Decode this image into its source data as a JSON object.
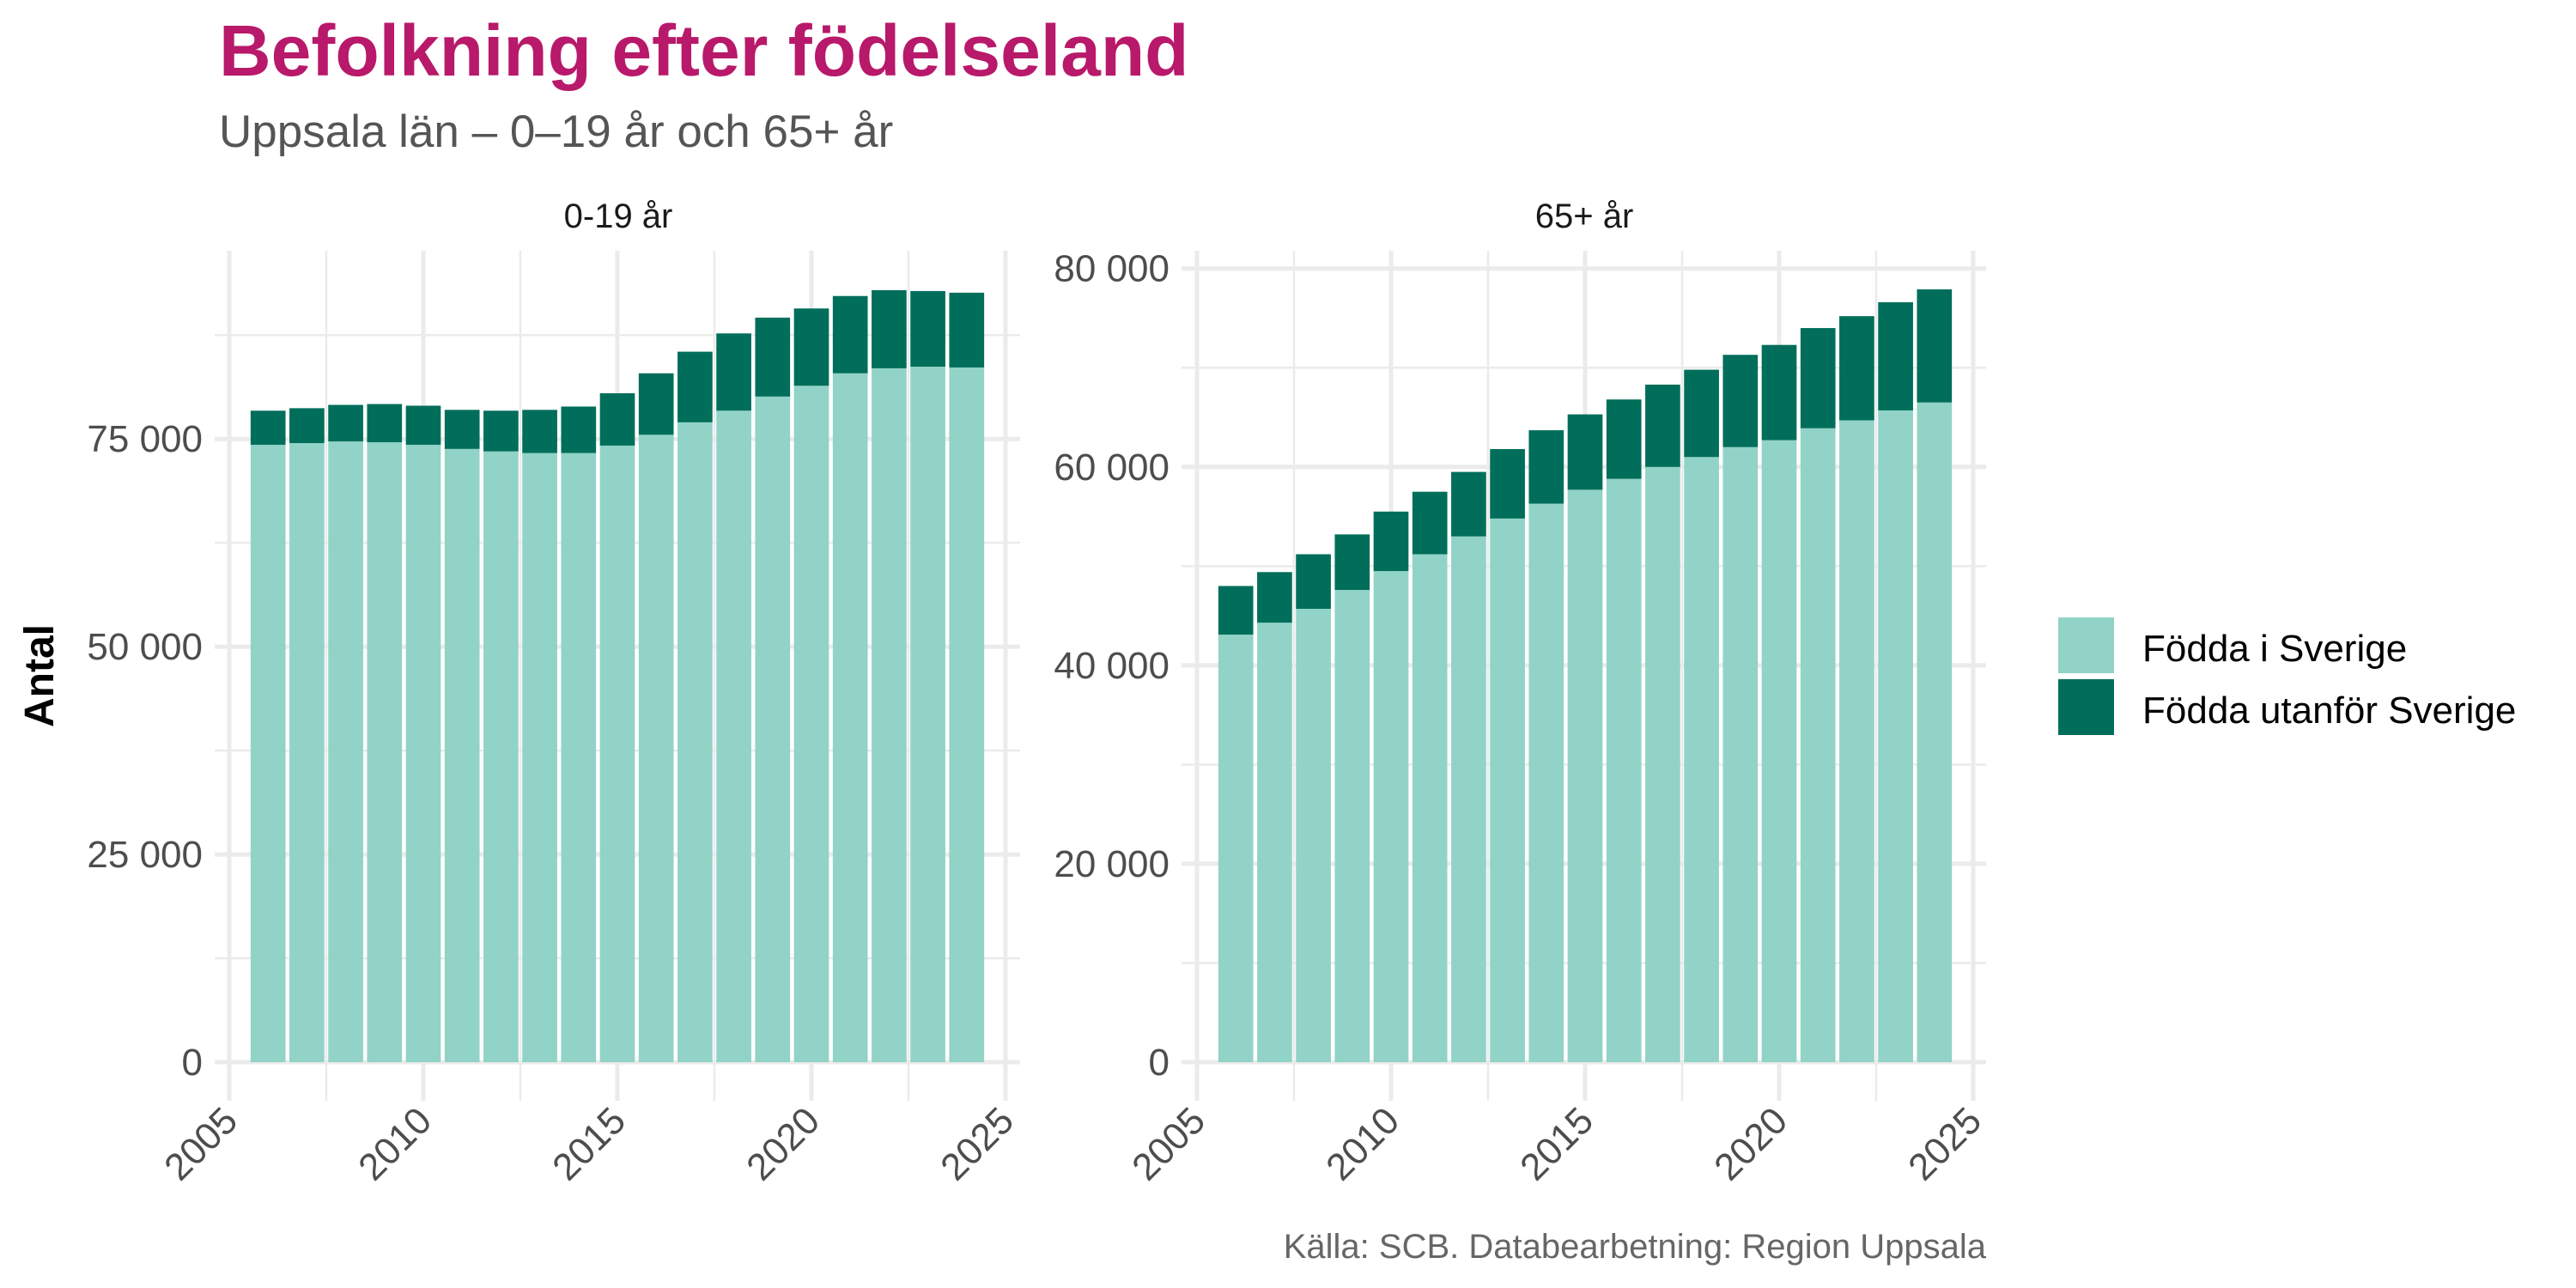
{
  "chart_data": {
    "type": "bar",
    "stacked": true,
    "title": "Befolkning efter födelseland",
    "subtitle": "Uppsala län – 0–19 år och 65+ år",
    "ylabel": "Antal",
    "xlabel": "",
    "caption": "Källa: SCB. Databearbetning: Region Uppsala",
    "legend": {
      "position": "right",
      "entries": [
        {
          "name": "Födda i Sverige",
          "color": "#91d3c7"
        },
        {
          "name": "Födda utanför Sverige",
          "color": "#006e5a"
        }
      ]
    },
    "colors": {
      "title": "#b8196a",
      "fodda_i_sverige": "#91d3c7",
      "fodda_utanfor_sverige": "#006e5a",
      "grid": "#ebebeb"
    },
    "grid": true,
    "x": [
      2006,
      2007,
      2008,
      2009,
      2010,
      2011,
      2012,
      2013,
      2014,
      2015,
      2016,
      2017,
      2018,
      2019,
      2020,
      2021,
      2022,
      2023,
      2024
    ],
    "facets": [
      {
        "label": "0-19 år",
        "xlim": [
          2005,
          2025
        ],
        "xticks": [
          2005,
          2010,
          2015,
          2020,
          2025
        ],
        "xticklabels": [
          "2005",
          "2010",
          "2015",
          "2020",
          "2025"
        ],
        "ylim": [
          -4650,
          97650
        ],
        "yticks": [
          0,
          25000,
          50000,
          75000
        ],
        "yticklabels": [
          "0",
          "25 000",
          "50 000",
          "75 000"
        ],
        "series": [
          {
            "name": "Födda i Sverige",
            "values": [
              74300,
              74500,
              74700,
              74600,
              74300,
              73800,
              73500,
              73300,
              73300,
              74200,
              75500,
              77000,
              78400,
              80100,
              81400,
              82900,
              83500,
              83700,
              83600
            ]
          },
          {
            "name": "Födda utanför Sverige",
            "values": [
              4100,
              4200,
              4400,
              4600,
              4700,
              4700,
              4900,
              5200,
              5600,
              6300,
              7400,
              8500,
              9300,
              9500,
              9300,
              9300,
              9400,
              9100,
              9000
            ]
          }
        ],
        "totals": [
          78400,
          78700,
          79100,
          79200,
          79000,
          78500,
          78400,
          78500,
          78900,
          80500,
          82900,
          85500,
          87700,
          89600,
          90700,
          92200,
          92900,
          92800,
          92600
        ]
      },
      {
        "label": "65+ år",
        "xlim": [
          2005,
          2025
        ],
        "xticks": [
          2005,
          2010,
          2015,
          2020,
          2025
        ],
        "xticklabels": [
          "2005",
          "2010",
          "2015",
          "2020",
          "2025"
        ],
        "ylim": [
          -3895,
          81795
        ],
        "yticks": [
          0,
          20000,
          40000,
          60000,
          80000
        ],
        "yticklabels": [
          "0",
          "20 000",
          "40 000",
          "60 000",
          "80 000"
        ],
        "series": [
          {
            "name": "Födda i Sverige",
            "values": [
              43100,
              44300,
              45700,
              47600,
              49500,
              51200,
              53000,
              54800,
              56300,
              57700,
              58800,
              60000,
              61000,
              62000,
              62700,
              63900,
              64700,
              65700,
              66500
            ]
          },
          {
            "name": "Födda utanför Sverige",
            "values": [
              4900,
              5100,
              5500,
              5600,
              6000,
              6300,
              6500,
              7000,
              7400,
              7600,
              8000,
              8300,
              8800,
              9300,
              9600,
              10100,
              10500,
              10900,
              11400
            ]
          }
        ],
        "totals": [
          48000,
          49400,
          51200,
          53200,
          55500,
          57500,
          59500,
          61800,
          63700,
          65300,
          66800,
          68300,
          69800,
          71300,
          72300,
          74000,
          75200,
          76600,
          77900
        ]
      }
    ]
  }
}
